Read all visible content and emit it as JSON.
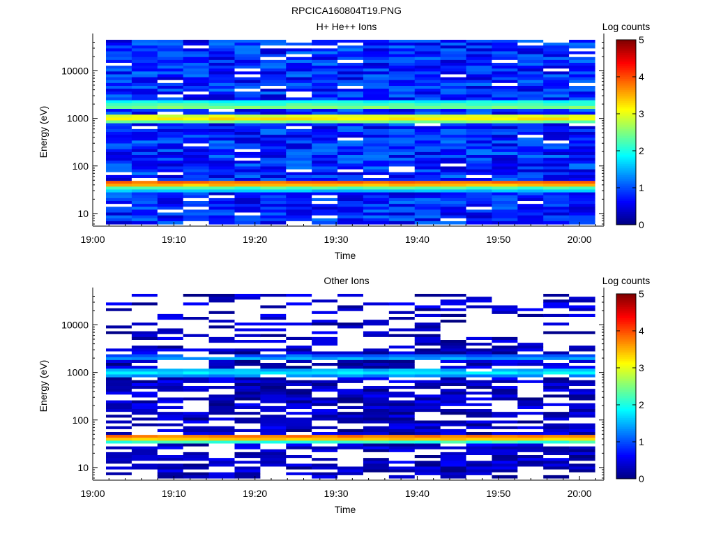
{
  "file_title": "RPCICA160804T19.PNG",
  "colorbar_ticks": [
    "0",
    "1",
    "2",
    "3",
    "4",
    "5"
  ],
  "colorscale": [
    "#00007f",
    "#0000ff",
    "#007fff",
    "#00ffff",
    "#7fff7f",
    "#ffff00",
    "#ff7f00",
    "#ff0000",
    "#7f0000"
  ],
  "chart_data": [
    {
      "type": "heatmap",
      "title": "H+ He++ Ions",
      "xlabel": "Time",
      "ylabel": "Energy (eV)",
      "colorbar_label": "Log counts",
      "clim": [
        0,
        5
      ],
      "yscale": "log",
      "ylim": [
        6,
        45000
      ],
      "xlim": [
        "19:00",
        "20:03"
      ],
      "x_ticks": [
        "19:00",
        "19:10",
        "19:20",
        "19:30",
        "19:40",
        "19:50",
        "20:00"
      ],
      "y_ticks": [
        "10",
        "100",
        "1000",
        "10000"
      ],
      "time_bins": 19,
      "bands": [
        {
          "energy_ev": 45,
          "log_counts": 3.9
        },
        {
          "energy_ev": 40,
          "log_counts": 3.4
        },
        {
          "energy_ev": 36,
          "log_counts": 2.4
        },
        {
          "energy_ev": 32,
          "log_counts": 1.8
        },
        {
          "energy_ev": 1000,
          "log_counts": 3.3
        },
        {
          "energy_ev": 920,
          "log_counts": 2.7
        },
        {
          "energy_ev": 1100,
          "log_counts": 2.4
        },
        {
          "energy_ev": 1700,
          "log_counts": 2.5
        },
        {
          "energy_ev": 2000,
          "log_counts": 2.3
        }
      ],
      "background_log_counts": 0.8
    },
    {
      "type": "heatmap",
      "title": "Other Ions",
      "xlabel": "Time",
      "ylabel": "Energy (eV)",
      "colorbar_label": "Log counts",
      "clim": [
        0,
        5
      ],
      "yscale": "log",
      "ylim": [
        6,
        45000
      ],
      "xlim": [
        "19:00",
        "20:03"
      ],
      "x_ticks": [
        "19:00",
        "19:10",
        "19:20",
        "19:30",
        "19:40",
        "19:50",
        "20:00"
      ],
      "y_ticks": [
        "10",
        "100",
        "1000",
        "10000"
      ],
      "time_bins": 19,
      "bands": [
        {
          "energy_ev": 45,
          "log_counts": 3.8
        },
        {
          "energy_ev": 40,
          "log_counts": 3.3
        },
        {
          "energy_ev": 36,
          "log_counts": 2.3
        },
        {
          "energy_ev": 1000,
          "log_counts": 1.9
        },
        {
          "energy_ev": 920,
          "log_counts": 1.6
        },
        {
          "energy_ev": 2000,
          "log_counts": 1.5
        }
      ],
      "background_log_counts": 0.2
    }
  ]
}
